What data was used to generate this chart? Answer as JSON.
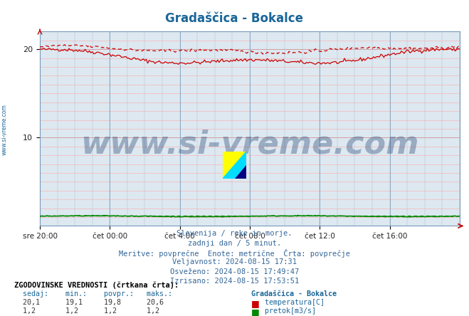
{
  "title": "Gradaščica - Bokalce",
  "title_color": "#1a6699",
  "bg_color": "#ffffff",
  "plot_bg_color": "#dde8f0",
  "grid_major_color": "#7799bb",
  "grid_minor_color": "#ffbbbb",
  "xlim": [
    0,
    288
  ],
  "ylim": [
    0,
    22
  ],
  "yticks": [
    10,
    20
  ],
  "xtick_labels": [
    "sre 20:00",
    "čet 00:00",
    "čet 4:00",
    "čet 08:0",
    "čet 12:0",
    "čet 16:00"
  ],
  "xtick_positions": [
    0,
    48,
    96,
    144,
    192,
    240
  ],
  "watermark_text": "www.si-vreme.com",
  "watermark_color": "#1a3d6e",
  "watermark_alpha": 0.35,
  "left_label": "www.si-vreme.com",
  "left_label_color": "#1a6699",
  "temp_solid_color": "#cc0000",
  "temp_dashed_color": "#cc0000",
  "flow_solid_color": "#008800",
  "flow_dashed_color": "#008800",
  "subtitle_lines": [
    "Slovenija / reke in morje.",
    "zadnji dan / 5 minut.",
    "Meritve: povprečne  Enote: metrične  Črta: povprečje",
    "Veljavnost: 2024-08-15 17:31",
    "Osveženo: 2024-08-15 17:49:47",
    "Izrisano: 2024-08-15 17:53:51"
  ]
}
